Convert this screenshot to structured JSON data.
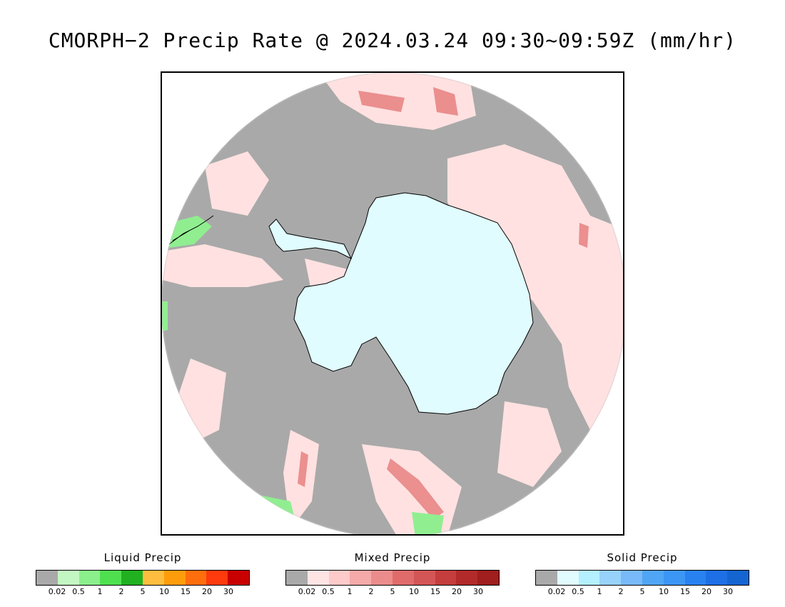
{
  "title": "CMORPH−2 Precip Rate @ 2024.03.24 09:30~09:59Z (mm/hr)",
  "map": {
    "projection": "south-polar-stereographic",
    "background_color": "#a9a9a9",
    "antarctica_color": "#e0fcff",
    "light_mixed_color": "#ffe1e1",
    "medium_mixed_color": "#e88080",
    "liquid_color": "#90ee90"
  },
  "legends": [
    {
      "title": "Liquid Precip",
      "colors": [
        "#a9a9a9",
        "#c3f7c1",
        "#8bef8b",
        "#4fe04f",
        "#20b020",
        "#ffbd40",
        "#ff9c0c",
        "#ff6e0c",
        "#ff3a0c",
        "#c80000"
      ],
      "ticks": [
        "0.02",
        "0.5",
        "1",
        "2",
        "5",
        "10",
        "15",
        "20",
        "30"
      ]
    },
    {
      "title": "Mixed Precip",
      "colors": [
        "#a9a9a9",
        "#ffe4e4",
        "#ffcaca",
        "#f5a9a9",
        "#eb8c8c",
        "#e06b6b",
        "#d45555",
        "#c53d3d",
        "#b22a2a",
        "#a01e1e"
      ],
      "ticks": [
        "0.02",
        "0.5",
        "1",
        "2",
        "5",
        "10",
        "15",
        "20",
        "30"
      ]
    },
    {
      "title": "Solid Precip",
      "colors": [
        "#a9a9a9",
        "#e0fcff",
        "#b4f0ff",
        "#96d2fa",
        "#78b9fa",
        "#50a5f5",
        "#3c96f5",
        "#2882f0",
        "#1e6ee6",
        "#1464d2"
      ],
      "ticks": [
        "0.02",
        "0.5",
        "1",
        "2",
        "5",
        "10",
        "15",
        "20",
        "30"
      ]
    }
  ]
}
